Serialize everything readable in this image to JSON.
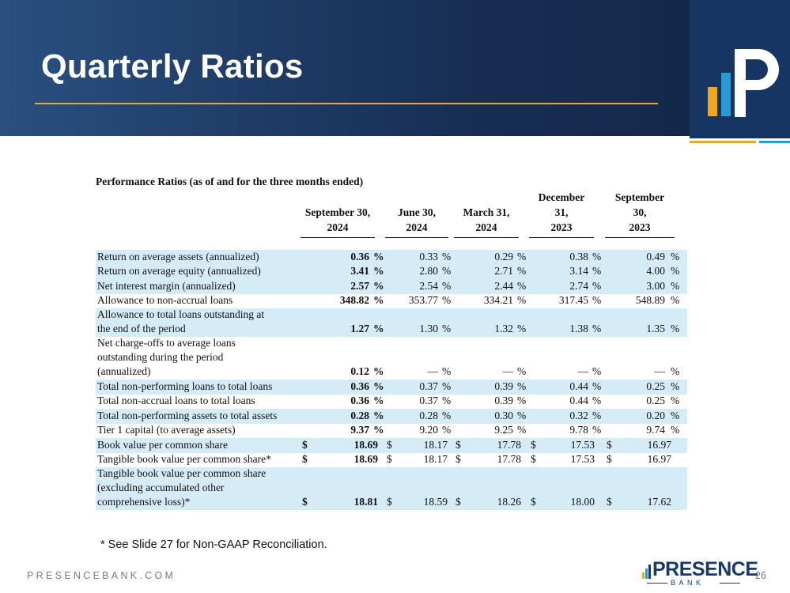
{
  "header": {
    "title": "Quarterly Ratios"
  },
  "table": {
    "caption": "Performance Ratios (as of and for the three months ended)",
    "columns": [
      {
        "lines": [
          "September 30,",
          "2024"
        ]
      },
      {
        "lines": [
          "June 30,",
          "2024"
        ]
      },
      {
        "lines": [
          "March 31,",
          "2024"
        ]
      },
      {
        "lines": [
          "December",
          "31,",
          "2023"
        ]
      },
      {
        "lines": [
          "September",
          "30,",
          "2023"
        ]
      }
    ],
    "rows": [
      {
        "label": [
          "Return on average assets (annualized)"
        ],
        "values": [
          "0.36",
          "0.33",
          "0.29",
          "0.38",
          "0.49"
        ],
        "suffix": "%",
        "shade": true
      },
      {
        "label": [
          "Return on average equity (annualized)"
        ],
        "values": [
          "3.41",
          "2.80",
          "2.71",
          "3.14",
          "4.00"
        ],
        "suffix": "%",
        "shade": true
      },
      {
        "label": [
          "Net interest margin (annualized)"
        ],
        "values": [
          "2.57",
          "2.54",
          "2.44",
          "2.74",
          "3.00"
        ],
        "suffix": "%",
        "shade": true
      },
      {
        "label": [
          "Allowance to non-accrual loans"
        ],
        "values": [
          "348.82",
          "353.77",
          "334.21",
          "317.45",
          "548.89"
        ],
        "suffix": "%",
        "shade": false
      },
      {
        "label": [
          "Allowance to total loans outstanding at",
          "the end of the period"
        ],
        "values": [
          "1.27",
          "1.30",
          "1.32",
          "1.38",
          "1.35"
        ],
        "suffix": "%",
        "shade": true
      },
      {
        "label": [
          "Net charge-offs to average loans",
          "outstanding during the period",
          "(annualized)"
        ],
        "values": [
          "0.12",
          "—",
          "—",
          "—",
          "—"
        ],
        "suffix": "%",
        "shade": false
      },
      {
        "label": [
          "Total non-performing loans to total loans"
        ],
        "values": [
          "0.36",
          "0.37",
          "0.39",
          "0.44",
          "0.25"
        ],
        "suffix": "%",
        "shade": true
      },
      {
        "label": [
          "Total non-accrual loans to total loans"
        ],
        "values": [
          "0.36",
          "0.37",
          "0.39",
          "0.44",
          "0.25"
        ],
        "suffix": "%",
        "shade": false
      },
      {
        "label": [
          "Total non-performing assets to total assets"
        ],
        "values": [
          "0.28",
          "0.28",
          "0.30",
          "0.32",
          "0.20"
        ],
        "suffix": "%",
        "shade": true
      },
      {
        "label": [
          "Tier 1 capital (to average assets)"
        ],
        "values": [
          "9.37",
          "9.20",
          "9.25",
          "9.78",
          "9.74"
        ],
        "suffix": "%",
        "shade": false
      },
      {
        "label": [
          "Book value per common share"
        ],
        "values": [
          "18.69",
          "18.17",
          "17.78",
          "17.53",
          "16.97"
        ],
        "dollar": "$",
        "shade": true
      },
      {
        "label": [
          "Tangible book value per common share*"
        ],
        "values": [
          "18.69",
          "18.17",
          "17.78",
          "17.53",
          "16.97"
        ],
        "dollar": "$",
        "shade": false
      },
      {
        "label": [
          "Tangible book value per common share",
          "(excluding accumulated other",
          "comprehensive loss)*"
        ],
        "values": [
          "18.81",
          "18.59",
          "18.26",
          "18.00",
          "17.62"
        ],
        "dollar": "$",
        "shade": true
      }
    ]
  },
  "footnote": "* See Slide 27 for Non-GAAP Reconciliation.",
  "footer": {
    "website": "PRESENCEBANK.COM",
    "brand_name": "PRESENCE",
    "brand_sub": "BANK",
    "page_number": "26"
  },
  "colors": {
    "banner": "#1f3d68",
    "accent_gold": "#e0a93c",
    "accent_blue": "#2a9ad1",
    "row_shade": "#d5ecf7",
    "brand_navy": "#173a6b"
  }
}
